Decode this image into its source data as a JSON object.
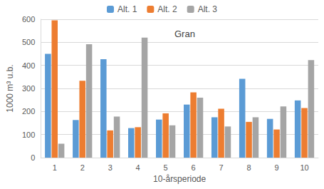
{
  "chart_data": {
    "type": "bar",
    "title": "Gran",
    "x_label": "10-årsperiode",
    "y_label": "1000 m³ u.b.",
    "categories": [
      "1",
      "2",
      "3",
      "4",
      "5",
      "6",
      "7",
      "8",
      "9",
      "10"
    ],
    "series": [
      {
        "name": "Alt. 1",
        "color": "#5b9bd5",
        "values": [
          450,
          163,
          427,
          128,
          165,
          230,
          175,
          342,
          168,
          248
        ]
      },
      {
        "name": "Alt. 2",
        "color": "#ed7d31",
        "values": [
          595,
          333,
          118,
          132,
          192,
          283,
          212,
          155,
          122,
          215
        ]
      },
      {
        "name": "Alt. 3",
        "color": "#a5a5a5",
        "values": [
          60,
          492,
          178,
          520,
          140,
          260,
          135,
          175,
          222,
          423
        ]
      }
    ],
    "ylim": [
      0,
      600
    ],
    "yticks": [
      0,
      100,
      200,
      300,
      400,
      500,
      600
    ],
    "grid": true,
    "legend": "top"
  }
}
